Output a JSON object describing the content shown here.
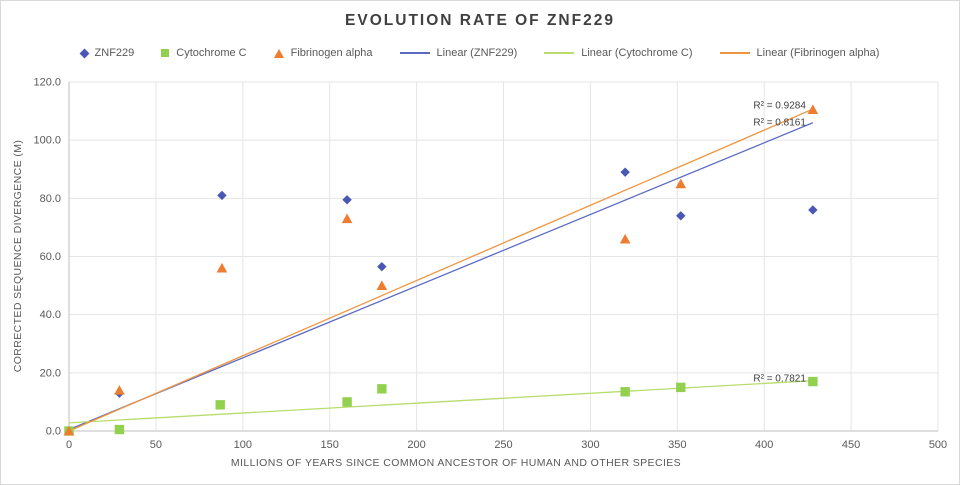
{
  "window": {
    "background": "#ffffff",
    "border_color": "#d9d9d9"
  },
  "chart_data": {
    "type": "scatter",
    "title": "EVOLUTION RATE OF ZNF229",
    "xlabel": "MILLIONS OF YEARS SINCE COMMON ANCESTOR OF HUMAN AND OTHER SPECIES",
    "ylabel": "CORRECTED SEQUENCE DIVERGENCE (M)",
    "xlim": [
      0,
      500
    ],
    "ylim": [
      0,
      120
    ],
    "x_ticks": [
      0,
      50,
      100,
      150,
      200,
      250,
      300,
      350,
      400,
      450,
      500
    ],
    "y_ticks": [
      0,
      20,
      40,
      60,
      80,
      100,
      120
    ],
    "grid": true,
    "legend_position": "top",
    "style": {
      "grid_color": "#e5e5e5",
      "axis_color": "#bfbfbf",
      "tick_color": "#595959",
      "text_color": "#595959",
      "title_color": "#404040",
      "annotation_color": "#404040",
      "bg": "#ffffff",
      "border_color": "#d9d9d9"
    },
    "series": [
      {
        "name": "ZNF229",
        "marker": "diamond",
        "color": "#4a58b4",
        "points": [
          [
            0,
            0
          ],
          [
            29,
            13
          ],
          [
            88,
            81
          ],
          [
            160,
            79.5
          ],
          [
            180,
            56.5
          ],
          [
            320,
            89
          ],
          [
            352,
            74
          ],
          [
            428,
            76
          ]
        ]
      },
      {
        "name": "Cytochrome C",
        "marker": "square",
        "color": "#92d050",
        "points": [
          [
            0,
            0
          ],
          [
            29,
            0.5
          ],
          [
            87,
            9
          ],
          [
            160,
            10
          ],
          [
            180,
            14.5
          ],
          [
            320,
            13.5
          ],
          [
            352,
            15
          ],
          [
            428,
            17
          ]
        ]
      },
      {
        "name": "Fibrinogen alpha",
        "marker": "triangle",
        "color": "#ed7d31",
        "points": [
          [
            0,
            0
          ],
          [
            29,
            14
          ],
          [
            88,
            56
          ],
          [
            160,
            73
          ],
          [
            180,
            50
          ],
          [
            320,
            66
          ],
          [
            352,
            85
          ],
          [
            428,
            110.5
          ]
        ]
      }
    ],
    "trendlines": [
      {
        "name": "Linear (ZNF229)",
        "color": "#5b6bc4",
        "x1": 0,
        "y1": 0.5,
        "x2": 428,
        "y2": 106,
        "r2": "R² = 0.8161",
        "label_x": 424,
        "label_y": 106.3
      },
      {
        "name": "Linear (Cytochrome C)",
        "color": "#b8dc6e",
        "x1": 0,
        "y1": 2.8,
        "x2": 428,
        "y2": 17.3,
        "r2": "R² = 0.7821",
        "label_x": 424,
        "label_y": 18.2
      },
      {
        "name": "Linear (Fibrinogen alpha)",
        "color": "#f0953f",
        "x1": 0,
        "y1": 0,
        "x2": 428,
        "y2": 110.7,
        "r2": "R² = 0.9284",
        "label_x": 424,
        "label_y": 112.1
      }
    ]
  }
}
